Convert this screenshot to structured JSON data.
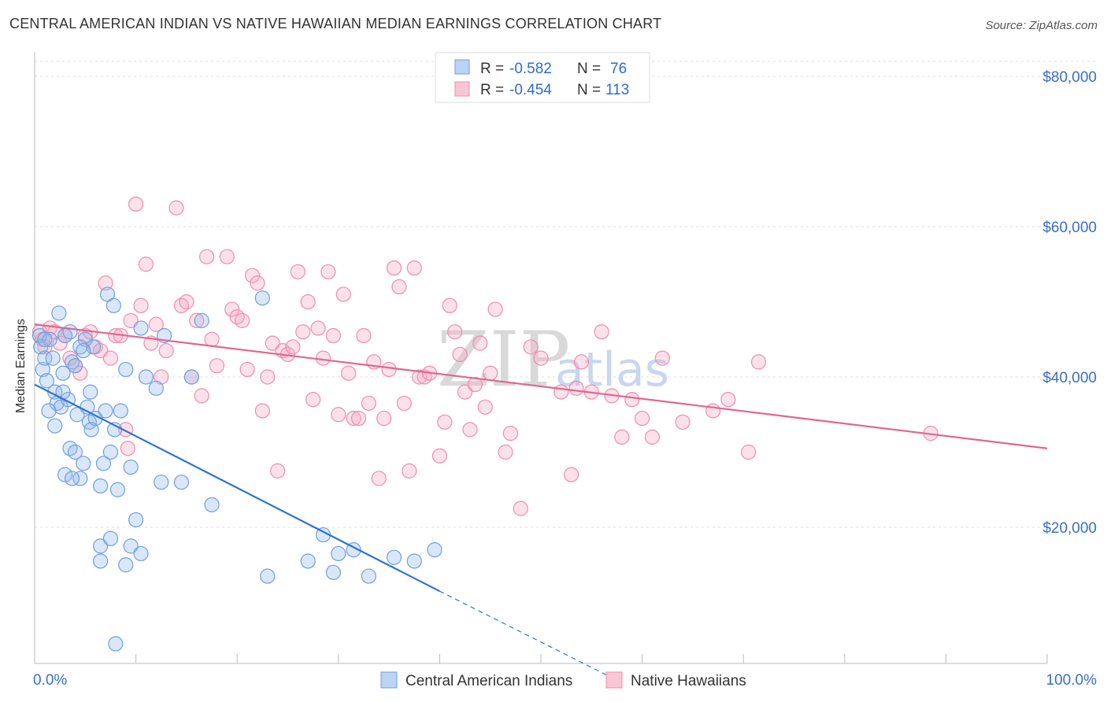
{
  "title": "CENTRAL AMERICAN INDIAN VS NATIVE HAWAIIAN MEDIAN EARNINGS CORRELATION CHART",
  "source": "Source: ZipAtlas.com",
  "watermark": {
    "zip": "ZIP",
    "atlas": "atlas"
  },
  "colors": {
    "blue": "#6f9fe0",
    "blue_line": "#2f72d0",
    "pink": "#f08cab",
    "pink_line": "#e06690"
  },
  "legend": {
    "rows": [
      {
        "r_label": "R =",
        "r_value": "-0.582",
        "n_label": "N =",
        "n_value": "76"
      },
      {
        "r_label": "R =",
        "r_value": "-0.454",
        "n_label": "N =",
        "n_value": "113"
      }
    ]
  },
  "chart_data": {
    "type": "scatter",
    "title": "CENTRAL AMERICAN INDIAN VS NATIVE HAWAIIAN MEDIAN EARNINGS CORRELATION CHART",
    "xlabel": "",
    "ylabel": "Median Earnings",
    "xlim": [
      0,
      100
    ],
    "ylim": [
      0,
      82000
    ],
    "x_tick_labels": [
      "0.0%",
      "100.0%"
    ],
    "y_ticks": [
      20000,
      40000,
      60000,
      80000
    ],
    "y_tick_labels": [
      "$20,000",
      "$40,000",
      "$60,000",
      "$80,000"
    ],
    "grid": true,
    "series": [
      {
        "name": "Central American Indians",
        "trend": {
          "x": [
            0,
            40
          ],
          "y": [
            39000,
            11500
          ],
          "dashed_to": [
            57,
            0
          ]
        },
        "points": [
          [
            0.5,
            45500
          ],
          [
            0.6,
            44000
          ],
          [
            0.8,
            41000
          ],
          [
            1.0,
            42500
          ],
          [
            1.2,
            39500
          ],
          [
            1.5,
            45000
          ],
          [
            1.8,
            42500
          ],
          [
            2.0,
            38000
          ],
          [
            2.2,
            36500
          ],
          [
            2.4,
            48500
          ],
          [
            2.6,
            36000
          ],
          [
            2.8,
            40500
          ],
          [
            3.0,
            45500
          ],
          [
            3.3,
            37000
          ],
          [
            3.5,
            46000
          ],
          [
            3.7,
            42000
          ],
          [
            4.0,
            41500
          ],
          [
            4.2,
            35000
          ],
          [
            1.4,
            35500
          ],
          [
            2.0,
            33500
          ],
          [
            3.5,
            30500
          ],
          [
            3.0,
            27000
          ],
          [
            4.0,
            30000
          ],
          [
            4.5,
            26500
          ],
          [
            4.8,
            28500
          ],
          [
            5.0,
            45000
          ],
          [
            5.2,
            36000
          ],
          [
            5.4,
            34000
          ],
          [
            5.5,
            38000
          ],
          [
            5.6,
            33000
          ],
          [
            5.8,
            44000
          ],
          [
            6.5,
            25500
          ],
          [
            6.8,
            28500
          ],
          [
            7.0,
            35500
          ],
          [
            7.2,
            51000
          ],
          [
            7.5,
            30000
          ],
          [
            7.8,
            49500
          ],
          [
            7.9,
            33000
          ],
          [
            8.2,
            25000
          ],
          [
            8.5,
            35500
          ],
          [
            9.0,
            41000
          ],
          [
            9.5,
            28000
          ],
          [
            10.0,
            21000
          ],
          [
            10.5,
            46500
          ],
          [
            11.0,
            40000
          ],
          [
            12.0,
            38500
          ],
          [
            12.5,
            26000
          ],
          [
            12.8,
            45500
          ],
          [
            14.5,
            26000
          ],
          [
            15.5,
            40000
          ],
          [
            16.5,
            47500
          ],
          [
            17.5,
            23000
          ],
          [
            22.5,
            50500
          ],
          [
            6.5,
            15500
          ],
          [
            6.5,
            17500
          ],
          [
            7.5,
            18500
          ],
          [
            9.0,
            15000
          ],
          [
            9.5,
            17500
          ],
          [
            10.5,
            16500
          ],
          [
            8.0,
            4500
          ],
          [
            23.0,
            13500
          ],
          [
            27.0,
            15500
          ],
          [
            28.5,
            19000
          ],
          [
            29.5,
            14000
          ],
          [
            30.0,
            16500
          ],
          [
            31.5,
            17000
          ],
          [
            33.0,
            13500
          ],
          [
            35.5,
            16000
          ],
          [
            37.5,
            15500
          ],
          [
            39.5,
            17000
          ],
          [
            4.5,
            44000
          ],
          [
            4.8,
            43500
          ],
          [
            6.0,
            34500
          ],
          [
            3.7,
            26500
          ],
          [
            2.8,
            38000
          ],
          [
            1.0,
            45000
          ]
        ]
      },
      {
        "name": "Native Hawaiians",
        "trend": {
          "x": [
            0,
            100
          ],
          "y": [
            47000,
            30500
          ]
        },
        "points": [
          [
            0.5,
            46000
          ],
          [
            0.8,
            45000
          ],
          [
            1.0,
            44000
          ],
          [
            1.5,
            46500
          ],
          [
            2.0,
            46000
          ],
          [
            2.5,
            44500
          ],
          [
            3.0,
            45500
          ],
          [
            3.5,
            42500
          ],
          [
            4.0,
            41500
          ],
          [
            4.5,
            40500
          ],
          [
            5.0,
            45500
          ],
          [
            5.5,
            46000
          ],
          [
            6.0,
            44000
          ],
          [
            6.5,
            43500
          ],
          [
            7.0,
            52500
          ],
          [
            7.5,
            42500
          ],
          [
            8.0,
            45500
          ],
          [
            8.5,
            45500
          ],
          [
            9.0,
            33000
          ],
          [
            9.2,
            30500
          ],
          [
            9.5,
            47500
          ],
          [
            10.0,
            63000
          ],
          [
            10.5,
            49500
          ],
          [
            11.0,
            55000
          ],
          [
            11.5,
            44500
          ],
          [
            12.0,
            47000
          ],
          [
            12.5,
            40000
          ],
          [
            13.0,
            43500
          ],
          [
            14.0,
            62500
          ],
          [
            14.5,
            49500
          ],
          [
            15.0,
            50000
          ],
          [
            15.5,
            40000
          ],
          [
            16.0,
            47500
          ],
          [
            16.5,
            37500
          ],
          [
            17.0,
            56000
          ],
          [
            17.5,
            45000
          ],
          [
            18.0,
            41500
          ],
          [
            19.0,
            56000
          ],
          [
            19.5,
            49000
          ],
          [
            20.0,
            48000
          ],
          [
            20.5,
            47500
          ],
          [
            21.0,
            41000
          ],
          [
            21.5,
            53500
          ],
          [
            22.0,
            52500
          ],
          [
            22.5,
            35500
          ],
          [
            23.0,
            40000
          ],
          [
            23.5,
            44500
          ],
          [
            24.0,
            27500
          ],
          [
            24.5,
            43500
          ],
          [
            25.0,
            43000
          ],
          [
            25.5,
            44000
          ],
          [
            26.0,
            54000
          ],
          [
            26.5,
            46000
          ],
          [
            27.0,
            50000
          ],
          [
            27.5,
            37000
          ],
          [
            28.0,
            46500
          ],
          [
            28.5,
            42500
          ],
          [
            29.0,
            54000
          ],
          [
            29.5,
            45500
          ],
          [
            30.0,
            35000
          ],
          [
            30.5,
            51000
          ],
          [
            31.0,
            40500
          ],
          [
            31.5,
            34500
          ],
          [
            32.0,
            34500
          ],
          [
            32.5,
            45500
          ],
          [
            33.0,
            36500
          ],
          [
            33.5,
            42000
          ],
          [
            34.0,
            26500
          ],
          [
            34.5,
            34500
          ],
          [
            35.0,
            41000
          ],
          [
            35.5,
            54500
          ],
          [
            36.0,
            52000
          ],
          [
            36.5,
            36500
          ],
          [
            37.0,
            27500
          ],
          [
            37.5,
            54500
          ],
          [
            38.0,
            40000
          ],
          [
            38.5,
            40000
          ],
          [
            39.0,
            40500
          ],
          [
            40.0,
            29500
          ],
          [
            40.5,
            34000
          ],
          [
            41.0,
            49500
          ],
          [
            41.5,
            46000
          ],
          [
            42.0,
            43000
          ],
          [
            42.5,
            38000
          ],
          [
            43.0,
            33000
          ],
          [
            43.5,
            39000
          ],
          [
            44.0,
            44500
          ],
          [
            44.5,
            36000
          ],
          [
            45.0,
            40500
          ],
          [
            45.5,
            49000
          ],
          [
            46.5,
            30000
          ],
          [
            47.0,
            32500
          ],
          [
            48.0,
            22500
          ],
          [
            49.0,
            44000
          ],
          [
            50.0,
            42500
          ],
          [
            52.0,
            38000
          ],
          [
            53.0,
            27000
          ],
          [
            54.0,
            42000
          ],
          [
            55.0,
            38000
          ],
          [
            56.0,
            46000
          ],
          [
            57.0,
            37500
          ],
          [
            58.0,
            32000
          ],
          [
            59.0,
            37000
          ],
          [
            60.0,
            34500
          ],
          [
            61.0,
            32000
          ],
          [
            62.0,
            42500
          ],
          [
            64.0,
            34000
          ],
          [
            67.0,
            35500
          ],
          [
            68.5,
            37000
          ],
          [
            70.5,
            30000
          ],
          [
            71.5,
            42000
          ],
          [
            88.5,
            32500
          ],
          [
            53.5,
            38500
          ]
        ]
      }
    ]
  }
}
